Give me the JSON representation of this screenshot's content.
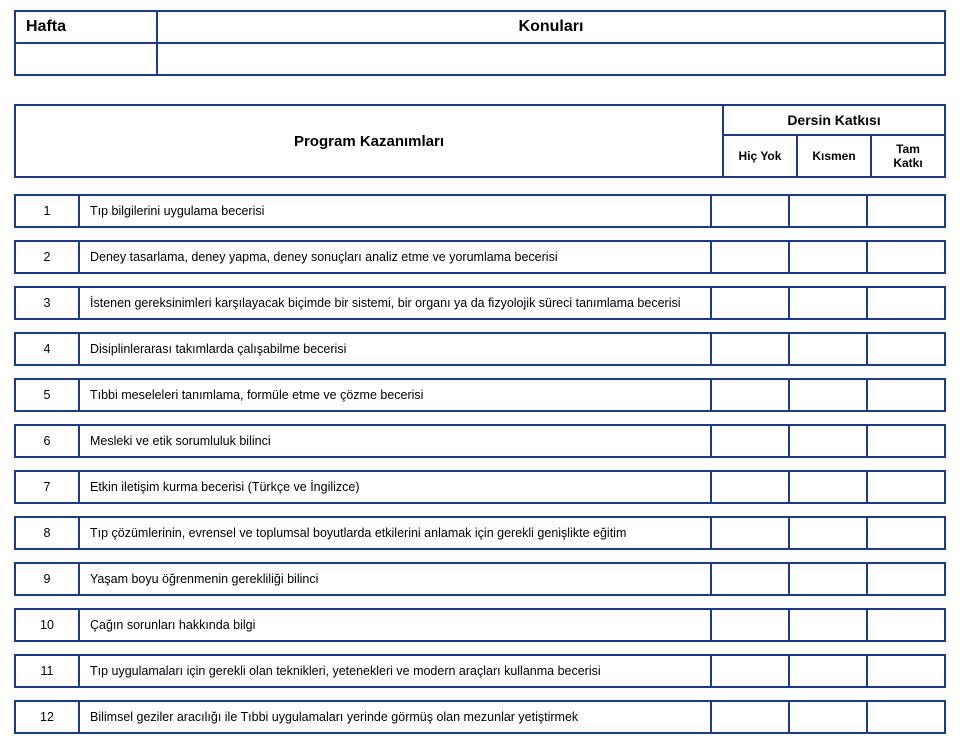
{
  "header": {
    "hafta_label": "Hafta",
    "konular_label": "Konuları"
  },
  "kazanim_header": {
    "title": "Program Kazanımları",
    "dersin_katkisi": "Dersin Katkısı",
    "hic_yok": "Hiç Yok",
    "kismen": "Kısmen",
    "tam_katki": "Tam Katkı"
  },
  "rows": [
    {
      "num": "1",
      "desc": "Tıp bilgilerini uygulama becerisi"
    },
    {
      "num": "2",
      "desc": "Deney tasarlama, deney yapma, deney sonuçları analiz etme ve yorumlama becerisi"
    },
    {
      "num": "3",
      "desc": "İstenen gereksinimleri karşılayacak biçimde bir sistemi, bir organı ya da fizyolojik süreci tanımlama becerisi"
    },
    {
      "num": "4",
      "desc": "Disiplinlerarası takımlarda çalışabilme becerisi"
    },
    {
      "num": "5",
      "desc": "Tıbbi meseleleri tanımlama, formüle etme ve çözme becerisi"
    },
    {
      "num": "6",
      "desc": "Mesleki ve etik sorumluluk bilinci"
    },
    {
      "num": "7",
      "desc": "Etkin iletişim kurma becerisi (Türkçe ve İngilizce)"
    },
    {
      "num": "8",
      "desc": "Tıp çözümlerinin, evrensel ve toplumsal boyutlarda etkilerini anlamak için gerekli genişlikte eğitim"
    },
    {
      "num": "9",
      "desc": "Yaşam boyu öğrenmenin gerekliliği bilinci"
    },
    {
      "num": "10",
      "desc": "Çağın sorunları hakkında bilgi"
    },
    {
      "num": "11",
      "desc": "Tıp uygulamaları için gerekli olan teknikleri, yetenekleri ve modern araçları kullanma becerisi"
    },
    {
      "num": "12",
      "desc": "Bilimsel geziler aracılığı ile Tıbbi uygulamaları yerinde görmüş olan mezunlar yetiştirmek"
    }
  ]
}
